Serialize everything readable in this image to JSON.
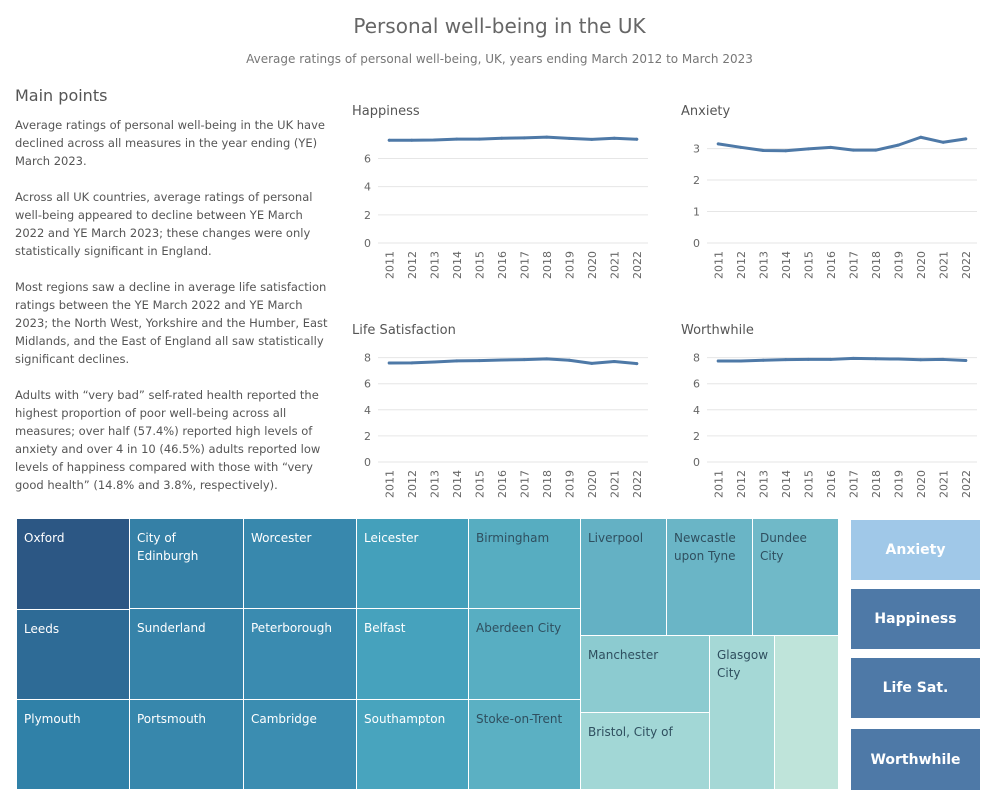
{
  "header": {
    "title": "Personal well-being in the UK",
    "subtitle": "Average ratings of personal well-being, UK, years ending March 2012 to March 2023"
  },
  "main_points": {
    "heading": "Main points",
    "paragraphs": [
      "Average ratings of personal well-being in the UK have declined across all measures in the year ending (YE) March 2023.",
      "Across all UK countries, average ratings of personal well-being appeared to decline between YE March 2022 and YE March 2023; these changes were only statistically significant in England.",
      "Most regions saw a decline in average life satisfaction ratings between the YE March 2022 and YE March 2023; the North West, Yorkshire and the Humber, East Midlands, and the East of England all saw statistically significant declines.",
      "Adults with “very bad” self-rated health reported the highest proportion of poor well-being across all measures; over half (57.4%) reported high levels of anxiety and over 4 in 10 (46.5%) adults reported low levels of happiness compared with those with “very good health” (14.8% and 3.8%, respectively)."
    ]
  },
  "chart_data": [
    {
      "type": "line",
      "title": "Happiness",
      "x": [
        "2011",
        "2012",
        "2013",
        "2014",
        "2015",
        "2016",
        "2017",
        "2018",
        "2019",
        "2020",
        "2021",
        "2022"
      ],
      "series": [
        {
          "values": [
            7.3,
            7.3,
            7.32,
            7.38,
            7.38,
            7.44,
            7.47,
            7.52,
            7.43,
            7.36,
            7.44,
            7.37
          ]
        }
      ],
      "y_ticks": [
        0,
        2,
        4,
        6
      ],
      "ylim": [
        0,
        7.6
      ],
      "line_color": "#4e79a7"
    },
    {
      "type": "line",
      "title": "Anxiety",
      "x": [
        "2011",
        "2012",
        "2013",
        "2014",
        "2015",
        "2016",
        "2017",
        "2018",
        "2019",
        "2020",
        "2021",
        "2022"
      ],
      "series": [
        {
          "values": [
            3.15,
            3.04,
            2.94,
            2.93,
            2.99,
            3.04,
            2.95,
            2.95,
            3.11,
            3.36,
            3.2,
            3.31
          ]
        }
      ],
      "y_ticks": [
        0,
        1,
        2,
        3
      ],
      "ylim": [
        0,
        3.4
      ],
      "line_color": "#4e79a7"
    },
    {
      "type": "line",
      "title": "Life Satisfaction",
      "x": [
        "2011",
        "2012",
        "2013",
        "2014",
        "2015",
        "2016",
        "2017",
        "2018",
        "2019",
        "2020",
        "2021",
        "2022"
      ],
      "series": [
        {
          "values": [
            7.59,
            7.6,
            7.66,
            7.75,
            7.77,
            7.82,
            7.85,
            7.9,
            7.8,
            7.56,
            7.7,
            7.54
          ]
        }
      ],
      "y_ticks": [
        0,
        2,
        4,
        6,
        8
      ],
      "ylim": [
        0,
        8.2
      ],
      "line_color": "#4e79a7"
    },
    {
      "type": "line",
      "title": "Worthwhile",
      "x": [
        "2011",
        "2012",
        "2013",
        "2014",
        "2015",
        "2016",
        "2017",
        "2018",
        "2019",
        "2020",
        "2021",
        "2022"
      ],
      "series": [
        {
          "values": [
            7.74,
            7.74,
            7.8,
            7.85,
            7.86,
            7.86,
            7.94,
            7.91,
            7.89,
            7.84,
            7.86,
            7.78
          ]
        }
      ],
      "y_ticks": [
        0,
        2,
        4,
        6,
        8
      ],
      "ylim": [
        0,
        8.2
      ],
      "line_color": "#4e79a7"
    }
  ],
  "treemap": {
    "cells": [
      {
        "label": "Oxford",
        "color": "#2c5784"
      },
      {
        "label": "Leeds",
        "color": "#2e6b96"
      },
      {
        "label": "Plymouth",
        "color": "#3081a8"
      },
      {
        "label": "City of Edinburgh",
        "color": "#3580a6"
      },
      {
        "label": "Sunderland",
        "color": "#3683a9"
      },
      {
        "label": "Portsmouth",
        "color": "#3787ac"
      },
      {
        "label": "Worcester",
        "color": "#3888ad"
      },
      {
        "label": "Peterborough",
        "color": "#3a8bb0"
      },
      {
        "label": "Cambridge",
        "color": "#3b8db1"
      },
      {
        "label": "Leicester",
        "color": "#44a0bb"
      },
      {
        "label": "Belfast",
        "color": "#46a2bd"
      },
      {
        "label": "Southampton",
        "color": "#48a4be"
      },
      {
        "label": "Birmingham",
        "color": "#57adc1"
      },
      {
        "label": "Aberdeen City",
        "color": "#58aec2"
      },
      {
        "label": "Stoke-on-Trent",
        "color": "#5bb0c3"
      },
      {
        "label": "Liverpool",
        "color": "#64b1c4"
      },
      {
        "label": "Newcastle upon Tyne",
        "color": "#6ab5c6"
      },
      {
        "label": "Dundee City",
        "color": "#70b9c8"
      },
      {
        "label": "Manchester",
        "color": "#8ccbd0"
      },
      {
        "label": "Bristol, City of",
        "color": "#a2d7d6"
      },
      {
        "label": "Glasgow City",
        "color": "#a5d8d6"
      },
      {
        "label": "",
        "color": "#bfe4da"
      }
    ],
    "text_color_dark": "#2f4f5f",
    "text_color_light": "#ffffff"
  },
  "side_buttons": [
    {
      "label": "Anxiety",
      "color": "#a0c8e8"
    },
    {
      "label": "Happiness",
      "color": "#4e79a7"
    },
    {
      "label": "Life Sat.",
      "color": "#4e79a7"
    },
    {
      "label": "Worthwhile",
      "color": "#4e79a7"
    }
  ]
}
